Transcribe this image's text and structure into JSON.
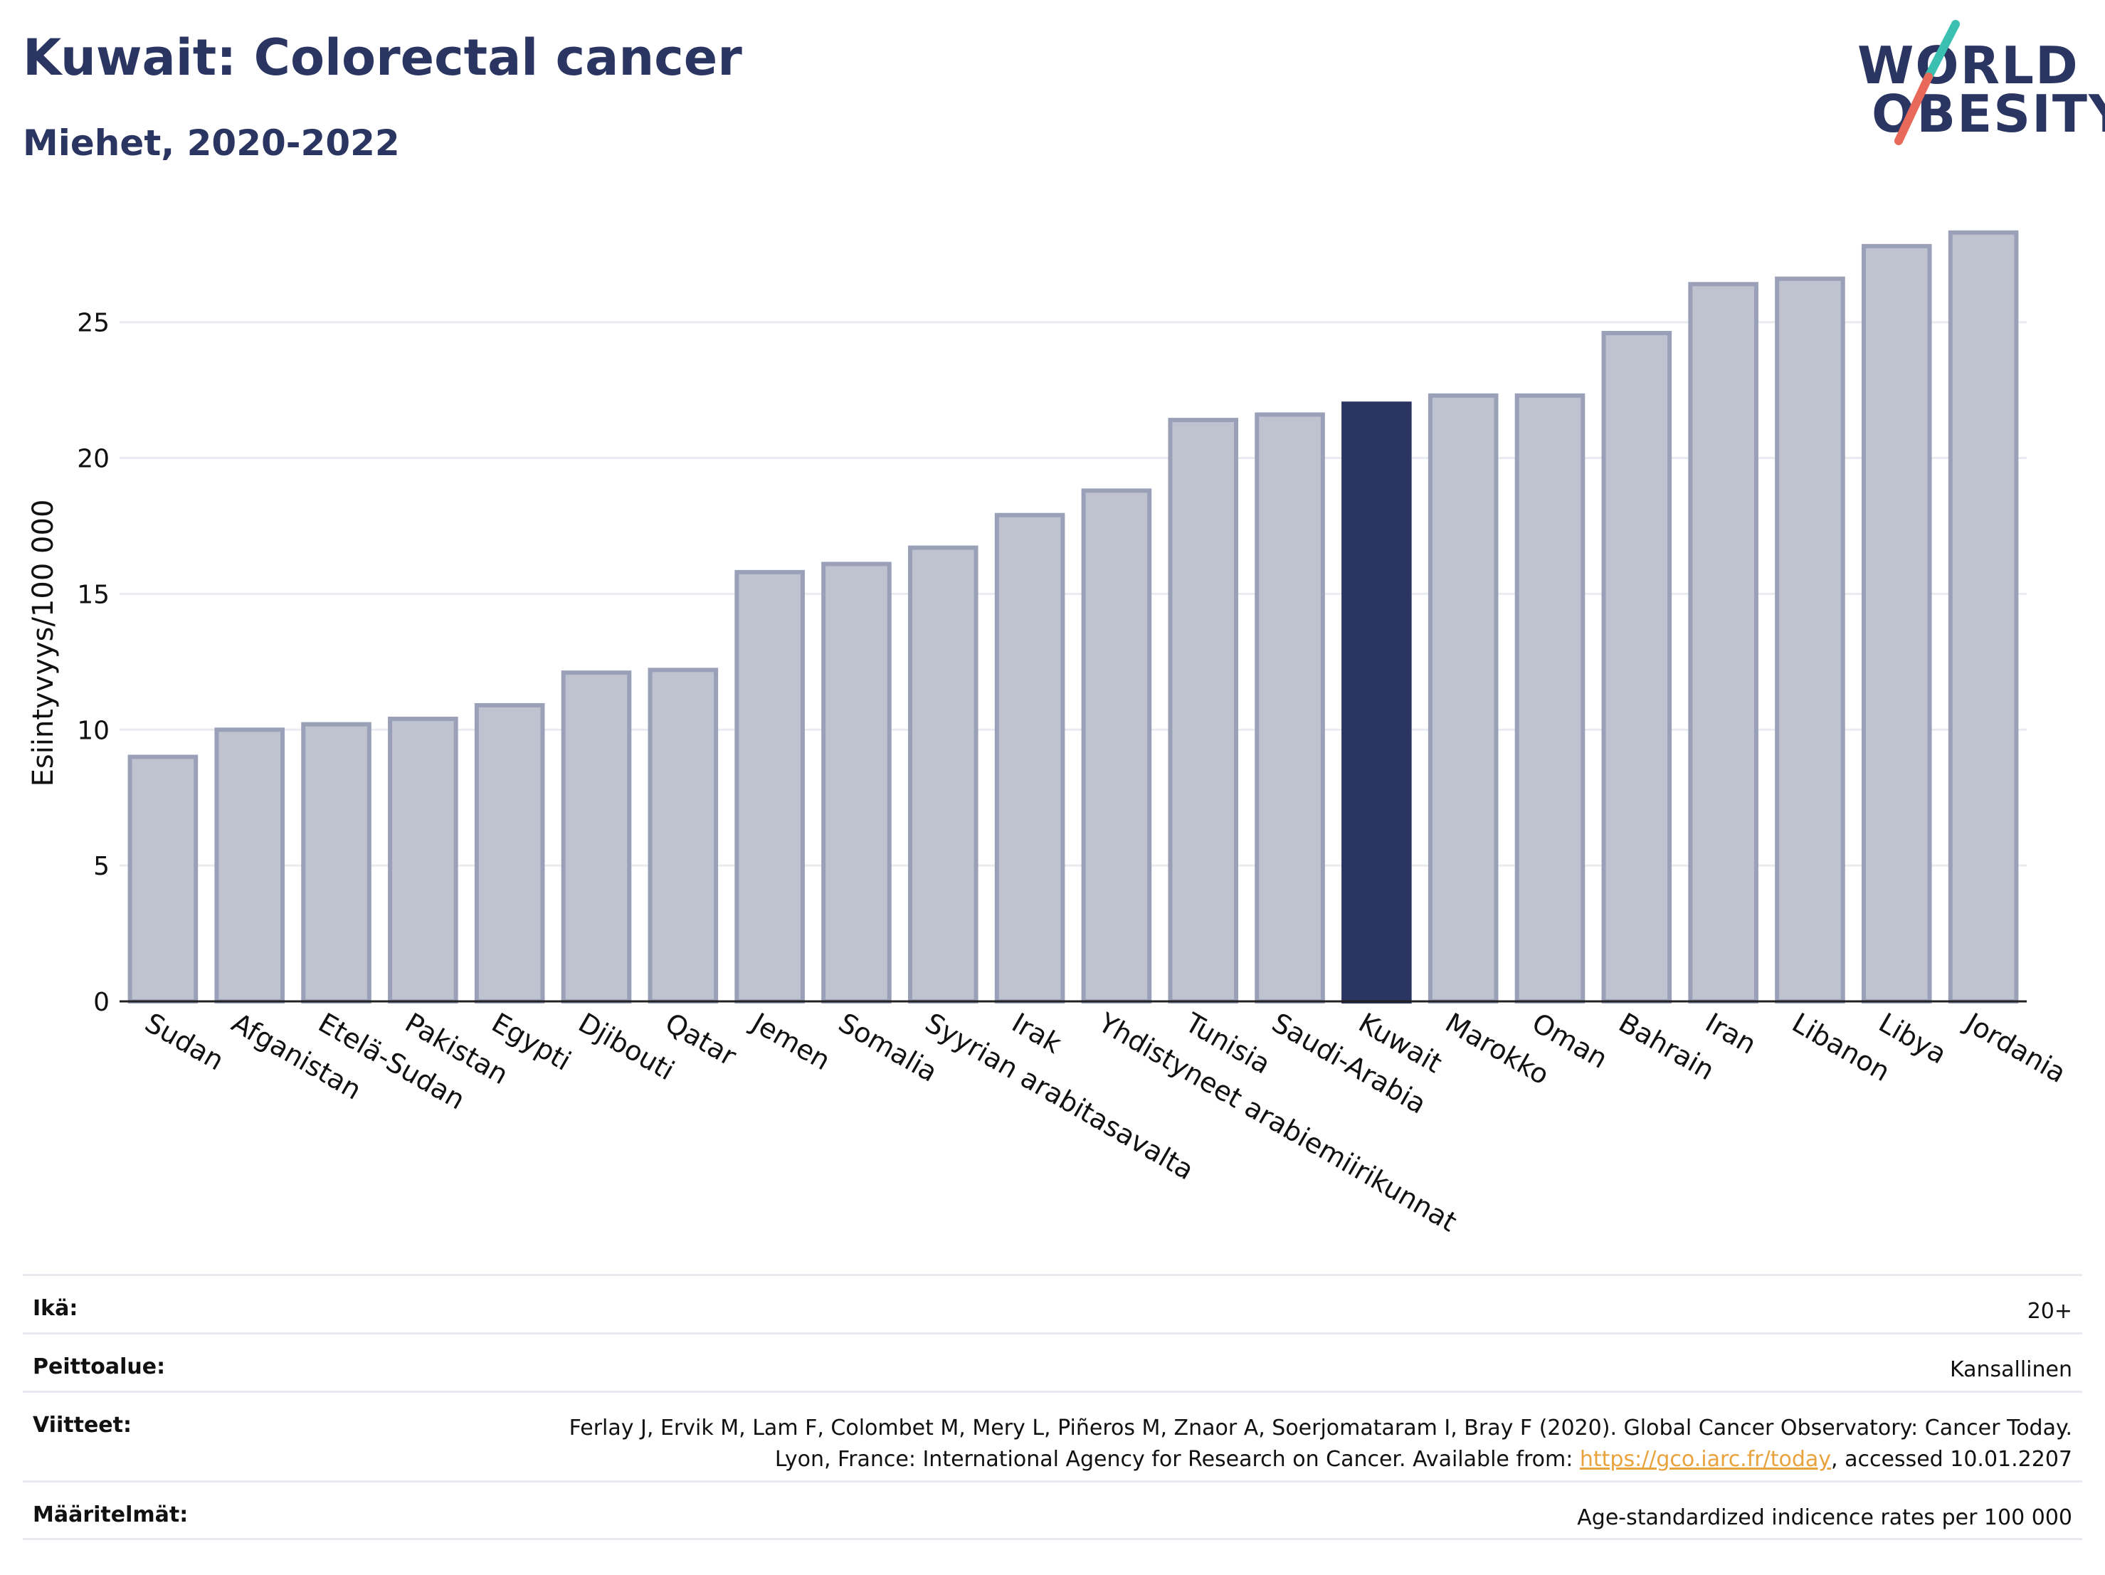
{
  "header": {
    "title": "Kuwait: Colorectal cancer",
    "subtitle": "Miehet, 2020-2022"
  },
  "logo": {
    "line1": "WORLD",
    "line2": "OBESITY",
    "colors": {
      "text": "#2b3561",
      "slash_top": "#3bbfb0",
      "slash_bottom": "#e8685a"
    }
  },
  "chart_data": {
    "type": "bar",
    "title": "Kuwait: Colorectal cancer",
    "subtitle": "Miehet, 2020-2022",
    "ylabel": "Esiintyvyys/100 000",
    "xlabel": "",
    "ylim": [
      0,
      29
    ],
    "yticks": [
      0,
      5,
      10,
      15,
      20,
      25
    ],
    "grid": true,
    "highlight": "Kuwait",
    "colors": {
      "bar": "#bfc3d0",
      "bar_edge": "#9aa0b8",
      "highlight": "#2b3561"
    },
    "categories": [
      "Sudan",
      "Afganistan",
      "Etelä-Sudan",
      "Pakistan",
      "Egypti",
      "Djibouti",
      "Qatar",
      "Jemen",
      "Somalia",
      "Syyrian arabitasavalta",
      "Irak",
      "Yhdistyneet arabiemiirikunnat",
      "Tunisia",
      "Saudi-Arabia",
      "Kuwait",
      "Marokko",
      "Oman",
      "Bahrain",
      "Iran",
      "Libanon",
      "Libya",
      "Jordania"
    ],
    "values": [
      9.0,
      10.0,
      10.2,
      10.4,
      10.9,
      12.1,
      12.2,
      15.8,
      16.1,
      16.7,
      17.9,
      18.8,
      21.4,
      21.6,
      22.0,
      22.3,
      22.3,
      24.6,
      26.4,
      26.6,
      27.8,
      28.3
    ]
  },
  "meta": [
    {
      "label": "Ikä:",
      "value": "20+"
    },
    {
      "label": "Peittoalue:",
      "value": "Kansallinen"
    },
    {
      "label": "Viitteet:",
      "value_before": "Ferlay J, Ervik M, Lam F, Colombet M, Mery L, Piñeros M, Znaor A, Soerjomataram I, Bray F (2020). Global Cancer Observatory: Cancer Today. Lyon, France: International Agency for Research on Cancer. Available from: ",
      "link": "https://gco.iarc.fr/today",
      "value_after": ", accessed 10.01.2207"
    },
    {
      "label": "Määritelmät:",
      "value": "Age-standardized indicence rates per 100 000"
    }
  ]
}
